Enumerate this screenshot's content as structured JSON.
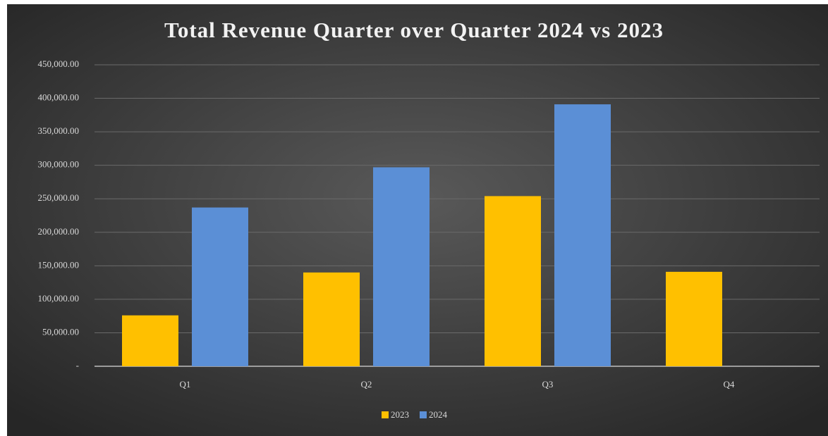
{
  "chart_data": {
    "type": "bar",
    "title": "Total Revenue Quarter over Quarter 2024 vs 2023",
    "categories": [
      "Q1",
      "Q2",
      "Q3",
      "Q4"
    ],
    "series": [
      {
        "name": "2023",
        "color": "#ffc000",
        "values": [
          76000,
          140000,
          254000,
          141000
        ]
      },
      {
        "name": "2024",
        "color": "#5b8fd6",
        "values": [
          237000,
          297000,
          391000,
          null
        ]
      }
    ],
    "ylim": [
      0,
      450000
    ],
    "yticks": [
      {
        "value": 0,
        "label": "-"
      },
      {
        "value": 50000,
        "label": "50,000.00"
      },
      {
        "value": 100000,
        "label": "100,000.00"
      },
      {
        "value": 150000,
        "label": "150,000.00"
      },
      {
        "value": 200000,
        "label": "200,000.00"
      },
      {
        "value": 250000,
        "label": "250,000.00"
      },
      {
        "value": 300000,
        "label": "300,000.00"
      },
      {
        "value": 350000,
        "label": "350,000.00"
      },
      {
        "value": 400000,
        "label": "400,000.00"
      },
      {
        "value": 450000,
        "label": "450,000.00"
      }
    ],
    "grid": true,
    "legend": "bottom"
  }
}
